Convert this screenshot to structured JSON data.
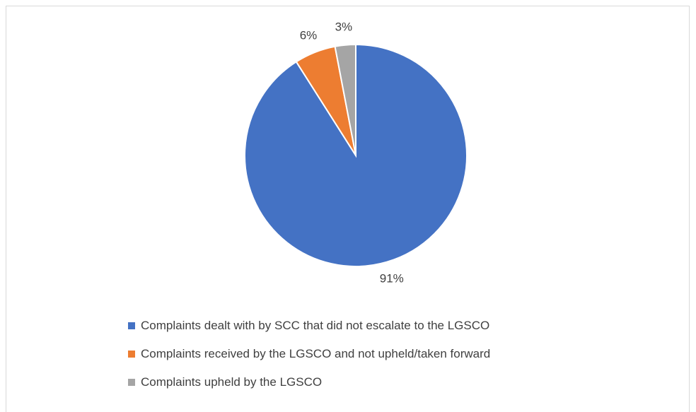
{
  "chart_data": {
    "type": "pie",
    "title": "",
    "categories": [
      "Complaints dealt with by SCC that did not escalate to the LGSCO",
      "Complaints received by the LGSCO and not upheld/taken forward",
      "Complaints upheld by the LGSCO"
    ],
    "values": [
      91,
      6,
      3
    ],
    "data_labels": [
      "91%",
      "6%",
      "3%"
    ],
    "colors": [
      "#4472c4",
      "#ed7d31",
      "#a5a5a5"
    ],
    "legend_position": "bottom"
  }
}
